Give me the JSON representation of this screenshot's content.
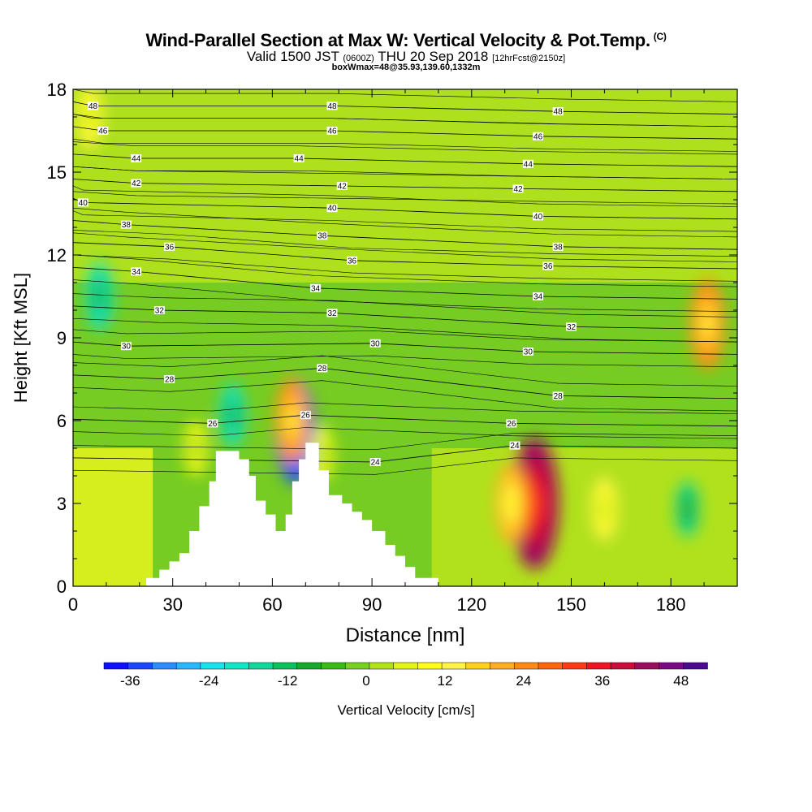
{
  "header": {
    "title": "Wind-Parallel Section at Max W: Vertical Velocity & Pot.Temp.",
    "copyright": "(C)",
    "valid_main": "Valid 1500 JST",
    "valid_utc": "(0600Z)",
    "valid_date": "THU 20 Sep 2018",
    "valid_fcst": "[12hrFcst@2150z]",
    "box_info": "boxWmax=48@35.93,139.60,1332m"
  },
  "chart_data": {
    "type": "heatmap",
    "title": "Wind-Parallel Section at Max W: Vertical Velocity & Pot.Temp.",
    "xlabel": "Distance [nm]",
    "ylabel": "Height [Kft MSL]",
    "xlim": [
      0,
      200
    ],
    "ylim": [
      0,
      18
    ],
    "xticks": [
      0,
      30,
      60,
      90,
      120,
      150,
      180
    ],
    "yticks": [
      0,
      3,
      6,
      9,
      12,
      15,
      18
    ],
    "colorbar": {
      "label": "Vertical Velocity [cm/s]",
      "ticks": [
        -36,
        -24,
        -12,
        0,
        12,
        24,
        36,
        48
      ],
      "range": [
        -40,
        52
      ],
      "step": 4,
      "colors": [
        "#1010ff",
        "#1c48ff",
        "#2f8cff",
        "#29b8ff",
        "#18e3ee",
        "#12e6c4",
        "#15d79d",
        "#0cc05c",
        "#17a92a",
        "#3cbb18",
        "#78d024",
        "#b2e21b",
        "#e2f418",
        "#fffd19",
        "#fff34a",
        "#ffd11c",
        "#ffad25",
        "#ff8a19",
        "#ff6411",
        "#ff3a16",
        "#ee1625",
        "#c8103a",
        "#9c0f5e",
        "#7a0a86",
        "#4d0a8e"
      ]
    },
    "series": [
      {
        "name": "Vertical Velocity",
        "units": "cm/s",
        "features": [
          {
            "x": 5,
            "y": 17,
            "value": 18
          },
          {
            "x": 8,
            "y": 10.5,
            "value": -20
          },
          {
            "x": 48,
            "y": 6.2,
            "value": -18
          },
          {
            "x": 67,
            "y": 5.6,
            "value": -36
          },
          {
            "x": 66,
            "y": 6.0,
            "value": 28
          },
          {
            "x": 37,
            "y": 5.0,
            "value": 14
          },
          {
            "x": 139,
            "y": 3.0,
            "value": 48
          },
          {
            "x": 132,
            "y": 3.0,
            "value": 26
          },
          {
            "x": 160,
            "y": 2.8,
            "value": 18
          },
          {
            "x": 191,
            "y": 9.5,
            "value": 30
          },
          {
            "x": 185,
            "y": 2.8,
            "value": -14
          },
          {
            "x": 75,
            "y": 4.8,
            "value": 14
          }
        ]
      },
      {
        "name": "Pot.Temp.",
        "contour_labels": [
          {
            "x": 6,
            "y": 17.4,
            "value": "48"
          },
          {
            "x": 78,
            "y": 17.4,
            "value": "48"
          },
          {
            "x": 146,
            "y": 17.2,
            "value": "48"
          },
          {
            "x": 9,
            "y": 16.5,
            "value": "46"
          },
          {
            "x": 78,
            "y": 16.5,
            "value": "46"
          },
          {
            "x": 140,
            "y": 16.3,
            "value": "46"
          },
          {
            "x": 19,
            "y": 15.5,
            "value": "44"
          },
          {
            "x": 68,
            "y": 15.5,
            "value": "44"
          },
          {
            "x": 137,
            "y": 15.3,
            "value": "44"
          },
          {
            "x": 19,
            "y": 14.6,
            "value": "42"
          },
          {
            "x": 81,
            "y": 14.5,
            "value": "42"
          },
          {
            "x": 134,
            "y": 14.4,
            "value": "42"
          },
          {
            "x": 3,
            "y": 13.9,
            "value": "40"
          },
          {
            "x": 78,
            "y": 13.7,
            "value": "40"
          },
          {
            "x": 140,
            "y": 13.4,
            "value": "40"
          },
          {
            "x": 16,
            "y": 13.1,
            "value": "38"
          },
          {
            "x": 75,
            "y": 12.7,
            "value": "38"
          },
          {
            "x": 146,
            "y": 12.3,
            "value": "38"
          },
          {
            "x": 29,
            "y": 12.3,
            "value": "36"
          },
          {
            "x": 84,
            "y": 11.8,
            "value": "36"
          },
          {
            "x": 143,
            "y": 11.6,
            "value": "36"
          },
          {
            "x": 19,
            "y": 11.4,
            "value": "34"
          },
          {
            "x": 73,
            "y": 10.8,
            "value": "34"
          },
          {
            "x": 140,
            "y": 10.5,
            "value": "34"
          },
          {
            "x": 26,
            "y": 10.0,
            "value": "32"
          },
          {
            "x": 78,
            "y": 9.9,
            "value": "32"
          },
          {
            "x": 150,
            "y": 9.4,
            "value": "32"
          },
          {
            "x": 16,
            "y": 8.7,
            "value": "30"
          },
          {
            "x": 91,
            "y": 8.8,
            "value": "30"
          },
          {
            "x": 137,
            "y": 8.5,
            "value": "30"
          },
          {
            "x": 29,
            "y": 7.5,
            "value": "28"
          },
          {
            "x": 75,
            "y": 7.9,
            "value": "28"
          },
          {
            "x": 146,
            "y": 6.9,
            "value": "28"
          },
          {
            "x": 42,
            "y": 5.9,
            "value": "26"
          },
          {
            "x": 70,
            "y": 6.2,
            "value": "26"
          },
          {
            "x": 132,
            "y": 5.9,
            "value": "26"
          },
          {
            "x": 91,
            "y": 4.5,
            "value": "24"
          },
          {
            "x": 133,
            "y": 5.1,
            "value": "24"
          }
        ]
      }
    ],
    "terrain": [
      [
        22,
        0
      ],
      [
        22,
        0.3
      ],
      [
        26,
        0.3
      ],
      [
        26,
        0.6
      ],
      [
        29,
        0.6
      ],
      [
        29,
        0.9
      ],
      [
        32,
        0.9
      ],
      [
        32,
        1.2
      ],
      [
        35,
        1.2
      ],
      [
        35,
        2
      ],
      [
        38,
        2
      ],
      [
        38,
        2.9
      ],
      [
        41,
        2.9
      ],
      [
        41,
        3.8
      ],
      [
        43,
        3.8
      ],
      [
        43,
        4.9
      ],
      [
        50,
        4.9
      ],
      [
        50,
        4.6
      ],
      [
        53,
        4.6
      ],
      [
        53,
        4
      ],
      [
        55,
        4
      ],
      [
        55,
        3.1
      ],
      [
        58,
        3.1
      ],
      [
        58,
        2.6
      ],
      [
        61,
        2.6
      ],
      [
        61,
        2
      ],
      [
        64,
        2
      ],
      [
        64,
        2.6
      ],
      [
        66,
        2.6
      ],
      [
        66,
        3.8
      ],
      [
        68,
        3.8
      ],
      [
        68,
        4.6
      ],
      [
        70,
        4.6
      ],
      [
        70,
        5.2
      ],
      [
        74,
        5.2
      ],
      [
        74,
        4.2
      ],
      [
        77,
        4.2
      ],
      [
        77,
        3.3
      ],
      [
        81,
        3.3
      ],
      [
        81,
        3
      ],
      [
        84,
        3
      ],
      [
        84,
        2.7
      ],
      [
        87,
        2.7
      ],
      [
        87,
        2.4
      ],
      [
        90,
        2.4
      ],
      [
        90,
        2
      ],
      [
        94,
        2
      ],
      [
        94,
        1.5
      ],
      [
        97,
        1.5
      ],
      [
        97,
        1.1
      ],
      [
        100,
        1.1
      ],
      [
        100,
        0.7
      ],
      [
        103,
        0.7
      ],
      [
        103,
        0.3
      ],
      [
        110,
        0.3
      ],
      [
        110,
        0
      ]
    ]
  }
}
